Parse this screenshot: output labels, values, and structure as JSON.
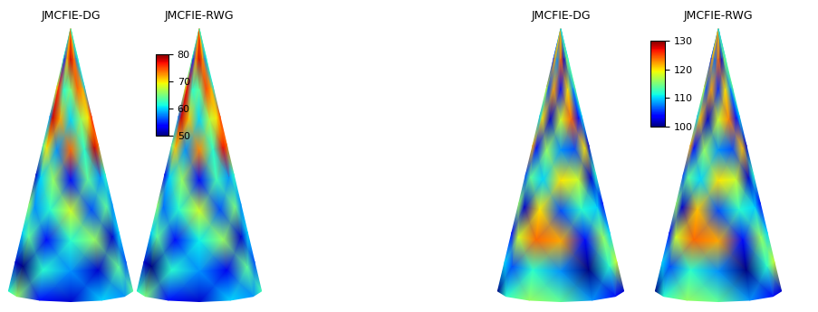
{
  "chart_data": [
    {
      "type": "heatmap",
      "colorbar_range": [
        50,
        80
      ],
      "colorbar_ticks": [
        50,
        60,
        70,
        80
      ],
      "panels": [
        {
          "title": "JMCFIE-DG",
          "cells": [
            [
              65,
              68,
              72,
              75,
              70,
              66,
              64
            ],
            [
              60,
              55,
              72,
              78,
              74,
              58,
              62
            ],
            [
              70,
              76,
              62,
              65,
              74,
              72,
              60
            ],
            [
              58,
              78,
              72,
              60,
              66,
              70,
              76
            ],
            [
              64,
              70,
              58,
              74,
              62,
              78,
              74
            ],
            [
              52,
              60,
              66,
              54,
              64,
              58,
              62
            ],
            [
              66,
              58,
              62,
              68,
              56,
              64,
              58
            ],
            [
              60,
              64,
              54,
              62,
              66,
              52,
              60
            ],
            [
              52,
              50,
              62,
              58,
              52,
              64,
              56
            ],
            [
              62,
              66,
              54,
              52,
              60,
              58,
              64
            ]
          ]
        },
        {
          "title": "JMCFIE-RWG",
          "cells": [
            [
              65,
              69,
              72,
              76,
              70,
              66,
              63
            ],
            [
              61,
              55,
              73,
              78,
              73,
              58,
              62
            ],
            [
              70,
              77,
              62,
              64,
              75,
              72,
              61
            ],
            [
              57,
              78,
              71,
              60,
              67,
              70,
              75
            ],
            [
              64,
              71,
              58,
              73,
              62,
              77,
              74
            ],
            [
              53,
              60,
              66,
              54,
              63,
              58,
              62
            ],
            [
              66,
              57,
              62,
              68,
              56,
              65,
              58
            ],
            [
              60,
              64,
              54,
              61,
              66,
              52,
              60
            ],
            [
              52,
              50,
              62,
              58,
              53,
              64,
              56
            ],
            [
              62,
              65,
              54,
              52,
              60,
              58,
              63
            ]
          ]
        }
      ]
    },
    {
      "type": "heatmap",
      "colorbar_range": [
        100,
        130
      ],
      "colorbar_ticks": [
        100,
        110,
        120,
        130
      ],
      "panels": [
        {
          "title": "JMCFIE-DG",
          "cells": [
            [
              112,
              118,
              124,
              120,
              114,
              110,
              108
            ],
            [
              104,
              122,
              108,
              124,
              102,
              116,
              112
            ],
            [
              118,
              106,
              122,
              104,
              120,
              108,
              114
            ],
            [
              110,
              120,
              102,
              118,
              124,
              104,
              110
            ],
            [
              122,
              104,
              116,
              108,
              106,
              120,
              102
            ],
            [
              106,
              114,
              110,
              120,
              118,
              102,
              112
            ],
            [
              116,
              102,
              120,
              106,
              112,
              110,
              104
            ],
            [
              104,
              118,
              124,
              122,
              104,
              116,
              110
            ],
            [
              110,
              106,
              112,
              108,
              100,
              112,
              118
            ],
            [
              100,
              112,
              116,
              114,
              108,
              104,
              102
            ]
          ]
        },
        {
          "title": "JMCFIE-RWG",
          "cells": [
            [
              112,
              119,
              124,
              120,
              113,
              110,
              108
            ],
            [
              104,
              122,
              107,
              124,
              102,
              116,
              113
            ],
            [
              118,
              106,
              122,
              105,
              120,
              108,
              114
            ],
            [
              110,
              121,
              102,
              118,
              123,
              104,
              110
            ],
            [
              122,
              104,
              116,
              108,
              106,
              121,
              102
            ],
            [
              106,
              114,
              110,
              120,
              118,
              102,
              112
            ],
            [
              116,
              102,
              121,
              106,
              112,
              110,
              104
            ],
            [
              104,
              118,
              124,
              122,
              104,
              116,
              110
            ],
            [
              110,
              106,
              112,
              108,
              100,
              112,
              118
            ],
            [
              100,
              112,
              116,
              114,
              108,
              104,
              102
            ]
          ]
        }
      ]
    }
  ]
}
